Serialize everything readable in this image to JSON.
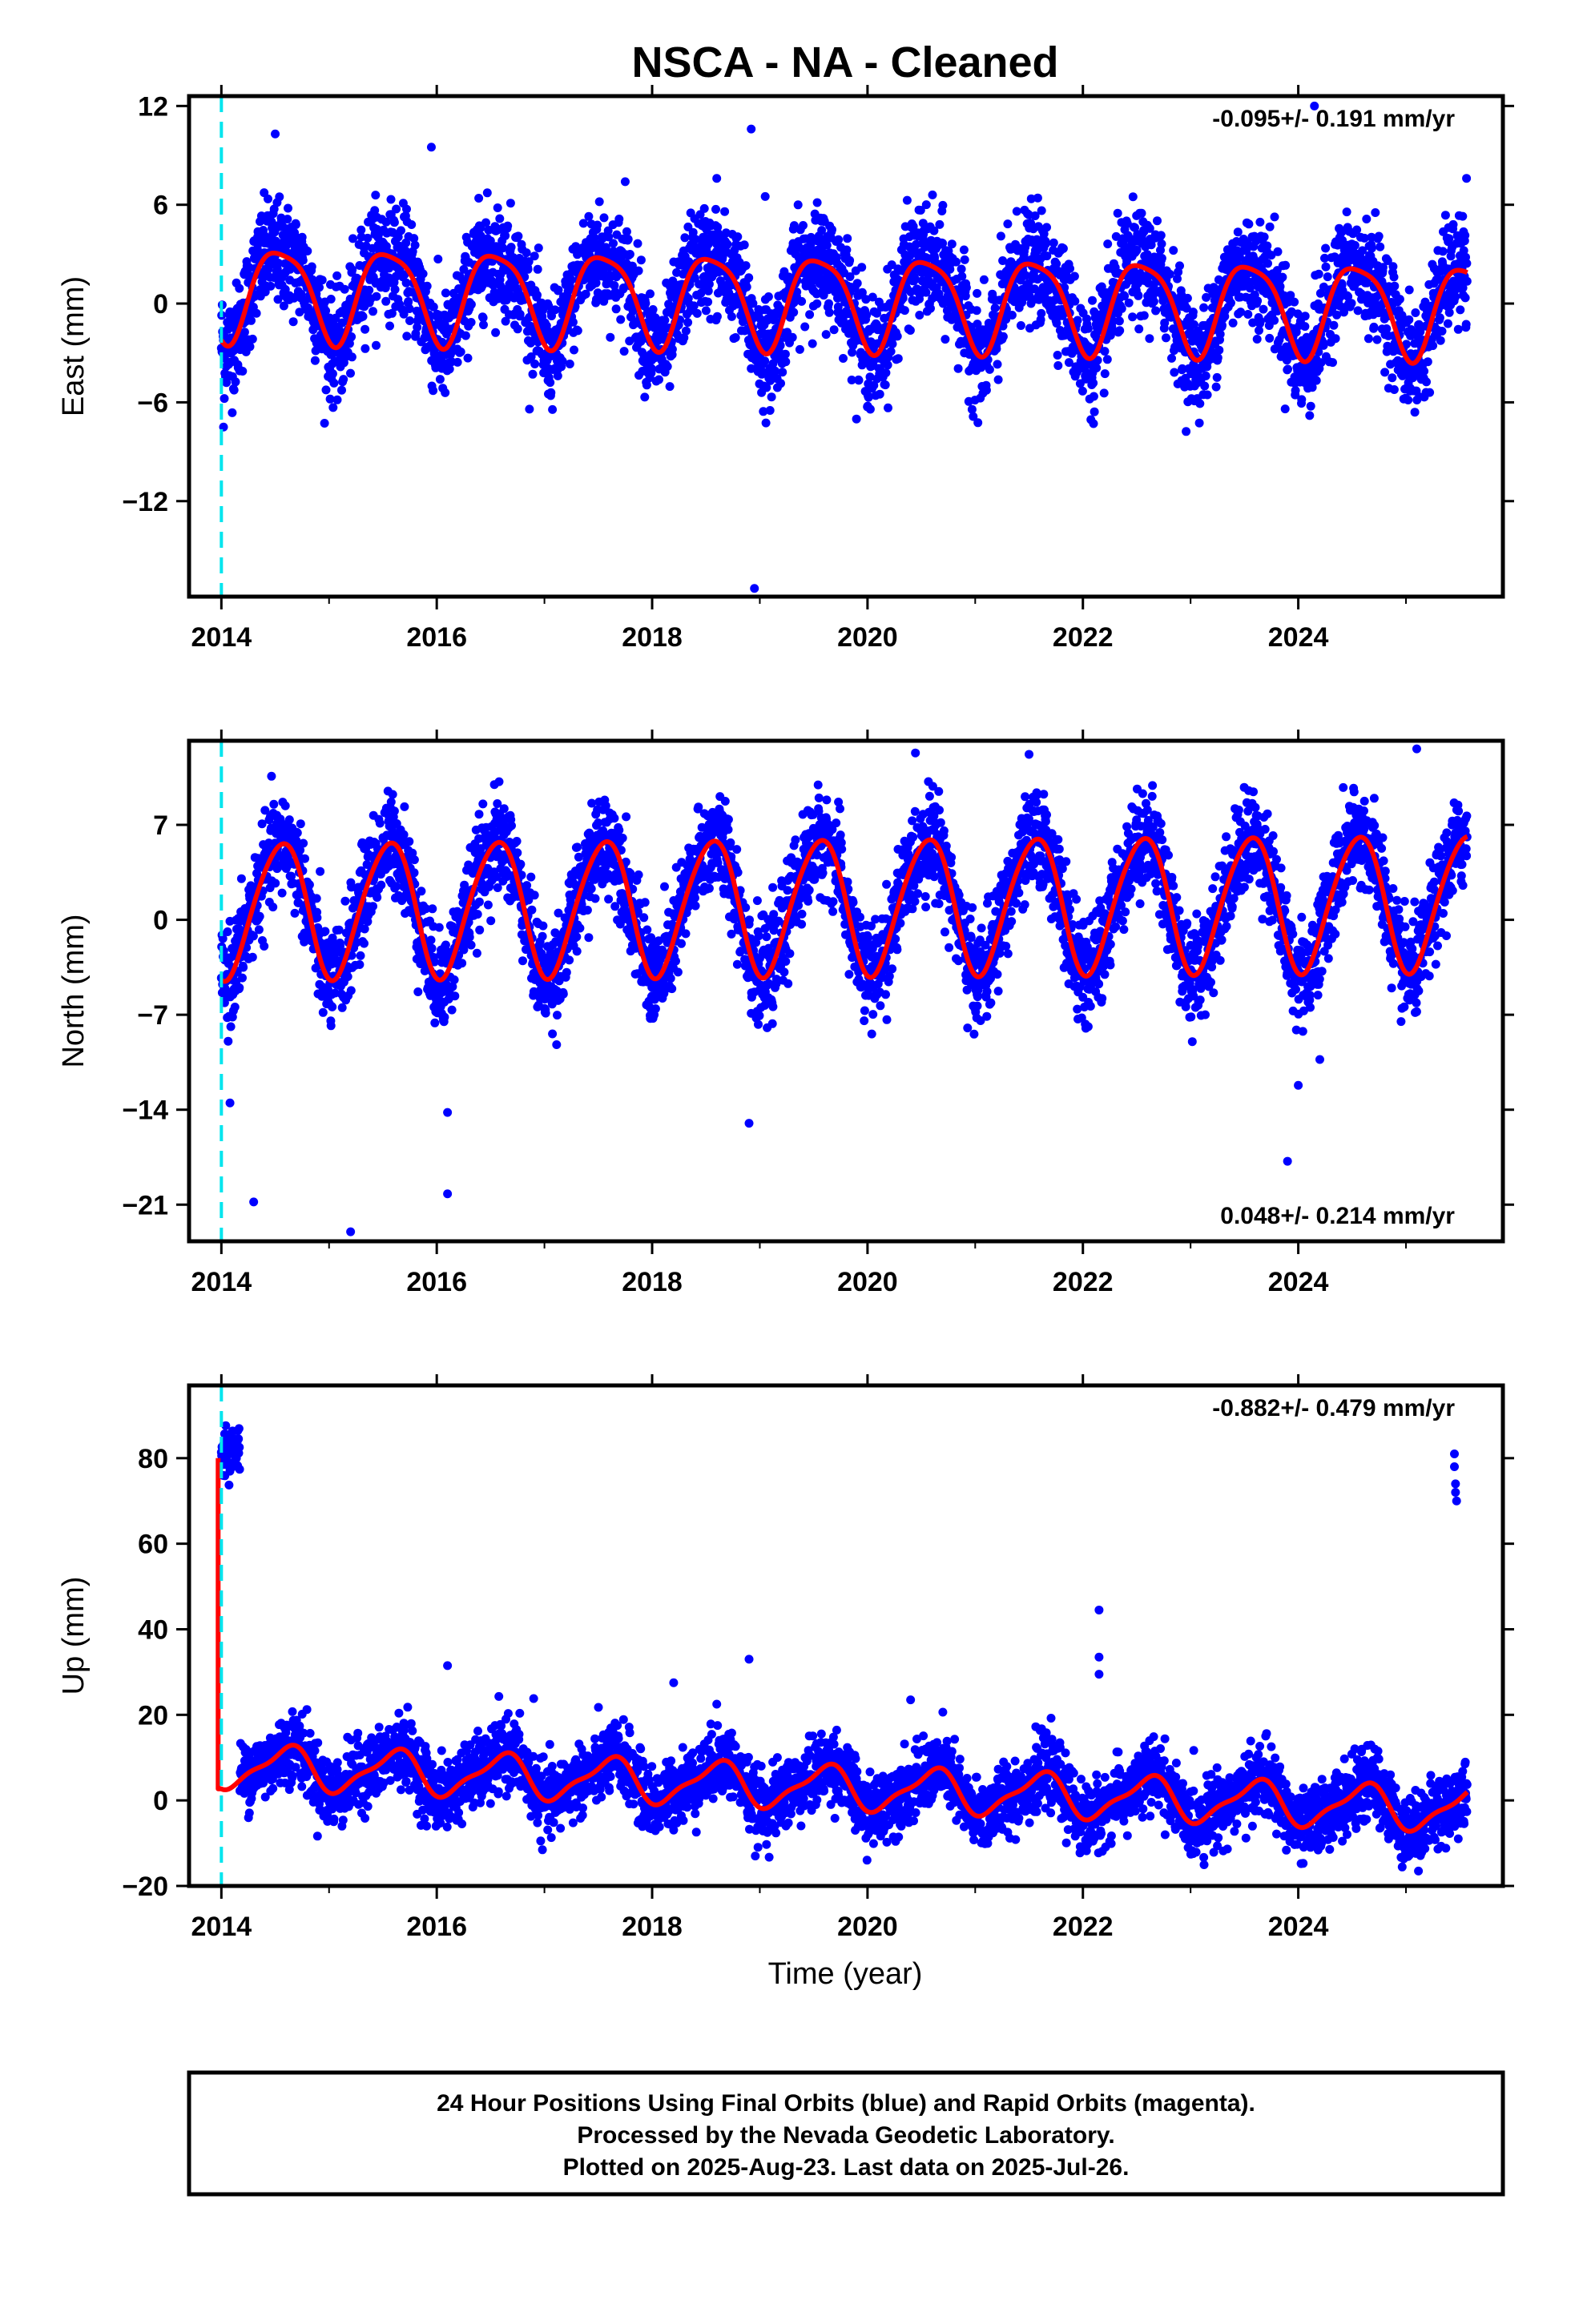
{
  "title": "NSCA  - NA - Cleaned",
  "xlabel": "Time (year)",
  "footer": {
    "line1": "24 Hour Positions Using Final Orbits (blue) and Rapid Orbits (magenta).",
    "line2": "Processed by the Nevada Geodetic Laboratory.",
    "line3": "Plotted on 2025-Aug-23. Last data on 2025-Jul-26."
  },
  "colors": {
    "points": "#0000ff",
    "model": "#ff0000",
    "event_line": "#00e5ee",
    "frame": "#000000"
  },
  "chart_data": [
    {
      "type": "scatter",
      "name": "east",
      "ylabel": "East (mm)",
      "rate": "-0.095+/- 0.191 mm/yr",
      "xlim": [
        2013.7,
        2025.9
      ],
      "ylim": [
        -17.8,
        12.6
      ],
      "x_ticks": [
        2014,
        2016,
        2018,
        2020,
        2022,
        2024
      ],
      "y_ticks": [
        12,
        6,
        0,
        -6,
        -12
      ],
      "y_tick_labels": [
        "12",
        "6",
        "0",
        "−6",
        "−12"
      ],
      "event_x": 2014.0,
      "data_range": [
        2014.0,
        2025.57
      ],
      "model": {
        "offset": 0.8,
        "trend": -0.095,
        "amp1": 2.8,
        "phase1": 0.55,
        "amp2": 0.6,
        "phase2": 0.2,
        "noise": 1.6
      },
      "outliers": [
        [
          2014.5,
          10.3
        ],
        [
          2015.95,
          9.5
        ],
        [
          2018.92,
          10.6
        ],
        [
          2019.05,
          6.5
        ],
        [
          2018.95,
          -17.3
        ],
        [
          2024.15,
          12.0
        ],
        [
          2017.75,
          7.4
        ],
        [
          2018.6,
          7.6
        ],
        [
          2014.02,
          -7.5
        ]
      ]
    },
    {
      "type": "scatter",
      "name": "north",
      "ylabel": "North (mm)",
      "rate": "0.048+/- 0.214 mm/yr",
      "xlim": [
        2013.7,
        2025.9
      ],
      "ylim": [
        -23.7,
        13.2
      ],
      "x_ticks": [
        2014,
        2016,
        2018,
        2020,
        2022,
        2024
      ],
      "y_ticks": [
        7,
        0,
        -7,
        -14,
        -21
      ],
      "y_tick_labels": [
        "7",
        "0",
        "−7",
        "−14",
        "−21"
      ],
      "event_x": 2014.0,
      "data_range": [
        2014.0,
        2025.57
      ],
      "model": {
        "offset": 0.8,
        "trend": 0.048,
        "amp1": 5.0,
        "phase1": 0.55,
        "amp2": 0.5,
        "phase2": 0.1,
        "noise": 1.8
      },
      "outliers": [
        [
          2014.3,
          -20.8
        ],
        [
          2015.2,
          -23.0
        ],
        [
          2016.1,
          -20.2
        ],
        [
          2016.1,
          -14.2
        ],
        [
          2018.9,
          -15.0
        ],
        [
          2023.9,
          -17.8
        ],
        [
          2024.0,
          -12.2
        ],
        [
          2024.2,
          -10.3
        ],
        [
          2021.5,
          12.2
        ],
        [
          2025.1,
          12.6
        ],
        [
          2014.08,
          -13.5
        ]
      ]
    },
    {
      "type": "scatter",
      "name": "up",
      "ylabel": "Up (mm)",
      "rate": "-0.882+/- 0.479 mm/yr",
      "xlim": [
        2013.7,
        2025.9
      ],
      "ylim": [
        -20,
        97
      ],
      "x_ticks": [
        2014,
        2016,
        2018,
        2020,
        2022,
        2024
      ],
      "y_ticks": [
        80,
        60,
        40,
        20,
        0,
        -20
      ],
      "y_tick_labels": [
        "80",
        "60",
        "40",
        "20",
        "0",
        "−20"
      ],
      "event_x": 2014.0,
      "data_range": [
        2014.0,
        2025.57
      ],
      "model": {
        "offset": 8.0,
        "trend": -0.882,
        "amp1": 4.8,
        "phase1": 0.6,
        "amp2": 1.5,
        "phase2": 0.1,
        "noise": 4.0
      },
      "early_cluster": {
        "x_range": [
          2013.97,
          2014.17
        ],
        "center": 82,
        "spread": 5
      },
      "late_cluster": [
        [
          2025.45,
          81
        ],
        [
          2025.45,
          78
        ],
        [
          2025.46,
          74
        ],
        [
          2025.46,
          72
        ],
        [
          2025.47,
          70
        ]
      ],
      "outliers": [
        [
          2016.1,
          31.5
        ],
        [
          2016.9,
          23.8
        ],
        [
          2018.2,
          27.5
        ],
        [
          2018.6,
          22.5
        ],
        [
          2018.9,
          33.0
        ],
        [
          2020.4,
          23.5
        ],
        [
          2022.15,
          44.5
        ],
        [
          2022.15,
          33.5
        ],
        [
          2022.15,
          29.5
        ]
      ]
    }
  ]
}
